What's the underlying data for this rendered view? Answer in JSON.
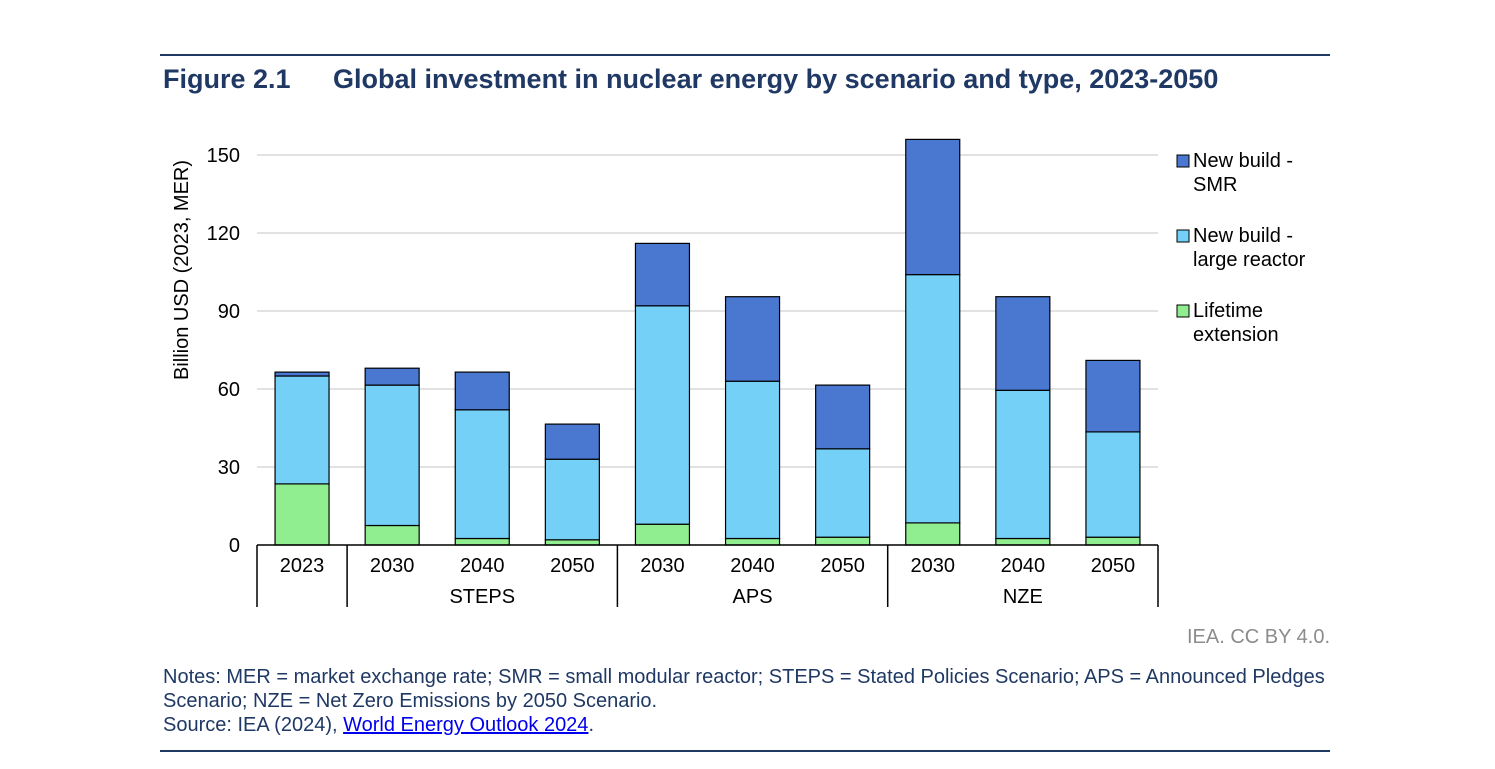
{
  "figure": {
    "number": "Figure 2.1",
    "title": "Global investment in nuclear energy by scenario and type, 2023-2050"
  },
  "credit": "IEA. CC BY 4.0.",
  "notes": {
    "line1": "Notes: MER = market exchange rate; SMR = small modular reactor; STEPS = Stated Policies Scenario; APS = Announced Pledges Scenario; NZE = Net Zero Emissions by 2050 Scenario.",
    "source_prefix": "Source: IEA (2024), ",
    "source_link": "World Energy Outlook 2024",
    "source_suffix": "."
  },
  "chart_data": {
    "type": "bar",
    "stacked": true,
    "ylabel": "Billion USD (2023, MER)",
    "ylim": [
      0,
      150
    ],
    "yticks": [
      0,
      30,
      60,
      90,
      120,
      150
    ],
    "grid": true,
    "legend_position": "right",
    "categories": [
      "2023",
      "2030",
      "2040",
      "2050",
      "2030",
      "2040",
      "2050",
      "2030",
      "2040",
      "2050"
    ],
    "groups": [
      {
        "label": "",
        "count": 1
      },
      {
        "label": "STEPS",
        "count": 3
      },
      {
        "label": "APS",
        "count": 3
      },
      {
        "label": "NZE",
        "count": 3
      }
    ],
    "series": [
      {
        "name": "Lifetime extension",
        "color": "#90ee90",
        "values": [
          23.5,
          7.5,
          2.5,
          2,
          8,
          2.5,
          3,
          8.5,
          2.5,
          3
        ]
      },
      {
        "name": "New build - large reactor",
        "color": "#75d0f8",
        "values": [
          41.5,
          54,
          49.5,
          31,
          84,
          60.5,
          34,
          95.5,
          57,
          40.5
        ]
      },
      {
        "name": "New build - SMR",
        "color": "#4a78d0",
        "values": [
          1.5,
          6.5,
          14.5,
          13.5,
          24,
          32.5,
          24.5,
          52,
          36,
          27.5
        ]
      }
    ],
    "legend": [
      {
        "label_line1": "New build -",
        "label_line2": "SMR",
        "color": "#4a78d0"
      },
      {
        "label_line1": "New build -",
        "label_line2": "large reactor",
        "color": "#75d0f8"
      },
      {
        "label_line1": "Lifetime",
        "label_line2": "extension",
        "color": "#90ee90"
      }
    ]
  }
}
